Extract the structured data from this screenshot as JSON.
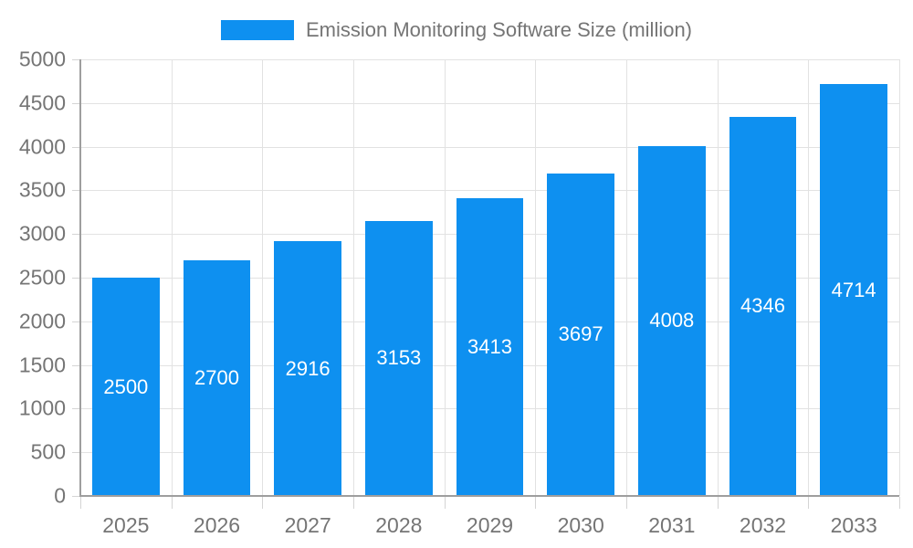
{
  "legend": {
    "label": "Emission Monitoring Software Size (million)"
  },
  "colors": {
    "bar": "#0e90f0",
    "bar_label": "#ffffff",
    "axis_line": "#9e9e9e",
    "gridline": "#e2e2e2",
    "tick": "#d4d4d4",
    "text": "#757575",
    "background": "#ffffff"
  },
  "chart_data": {
    "type": "bar",
    "title": "Emission Monitoring Software Size (million)",
    "categories": [
      "2025",
      "2026",
      "2027",
      "2028",
      "2029",
      "2030",
      "2031",
      "2032",
      "2033"
    ],
    "series": [
      {
        "name": "Emission Monitoring Software Size (million)",
        "values": [
          2500,
          2700,
          2916,
          3153,
          3413,
          3697,
          4008,
          4346,
          4714
        ]
      }
    ],
    "xlabel": "",
    "ylabel": "",
    "ylim": [
      0,
      5000
    ],
    "ytick_step": 500,
    "ytick_labels": [
      "0",
      "500",
      "1000",
      "1500",
      "2000",
      "2500",
      "3000",
      "3500",
      "4000",
      "4500",
      "5000"
    ],
    "grid": true,
    "legend_position": "top",
    "data_labels": "inside-center",
    "bar_width_fraction": 0.74
  }
}
